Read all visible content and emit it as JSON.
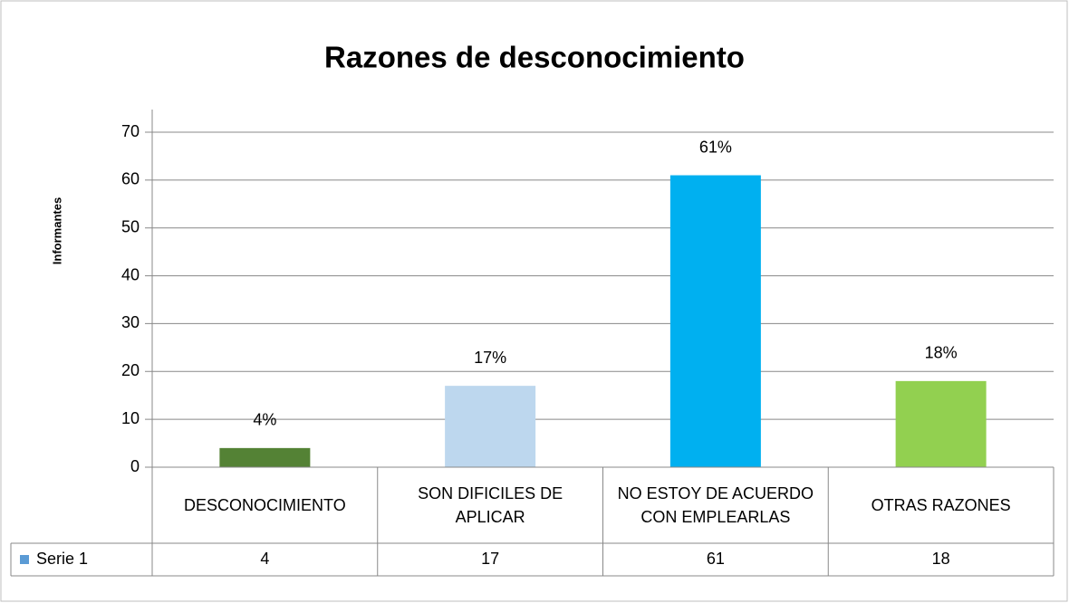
{
  "chart_data": {
    "type": "bar",
    "title": "Razones de desconocimiento",
    "y_label": "Informantes",
    "categories": [
      "DESCONOCIMIENTO",
      "SON DIFICILES DE APLICAR",
      "NO ESTOY DE ACUERDO CON EMPLEARLAS",
      "OTRAS RAZONES"
    ],
    "series": [
      {
        "name": "Serie 1",
        "color": "#5b9bd5",
        "values": [
          4,
          17,
          61,
          18
        ],
        "value_labels": [
          "4%",
          "17%",
          "61%",
          "18%"
        ]
      }
    ],
    "bar_colors": [
      "#548235",
      "#bdd7ee",
      "#00b0f0",
      "#92d050"
    ],
    "ylim": [
      0,
      70
    ],
    "yticks": [
      0,
      10,
      20,
      30,
      40,
      50,
      60,
      70
    ],
    "grid": true,
    "data_table": true
  }
}
